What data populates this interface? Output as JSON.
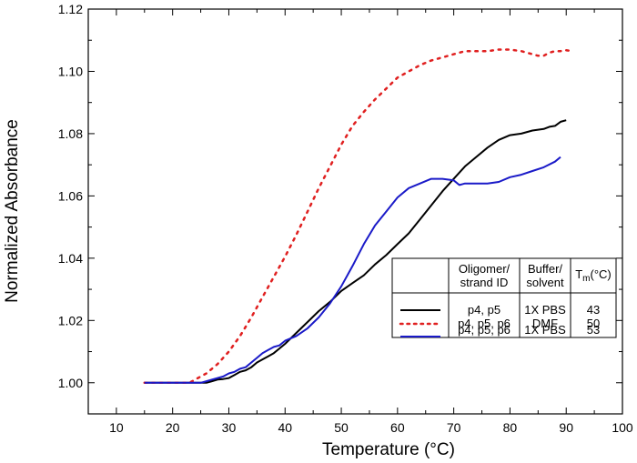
{
  "chart_data": {
    "type": "line",
    "xlabel": "Temperature (°C)",
    "ylabel": "Normalized Absorbance",
    "xlim": [
      5,
      100
    ],
    "ylim": [
      0.99,
      1.12
    ],
    "xticks": [
      "10",
      "20",
      "30",
      "40",
      "50",
      "60",
      "70",
      "80",
      "90",
      "100"
    ],
    "yticks": [
      "1.00",
      "1.02",
      "1.04",
      "1.06",
      "1.08",
      "1.10",
      "1.12"
    ],
    "grid": false,
    "legend_position": "bottom-right",
    "legend_headers": {
      "col1": [
        "Oligomer/",
        "strand ID"
      ],
      "col2": [
        "Buffer/",
        "solvent"
      ],
      "col3": "T",
      "col3_sub": "m",
      "col3_rest": "(°C)"
    },
    "series": [
      {
        "name": "p4, p5",
        "buffer": "1X PBS",
        "tm": "43",
        "color": "#000000",
        "dash": "solid",
        "x": [
          15,
          16,
          17,
          18,
          19,
          20,
          21,
          22,
          23,
          24,
          25,
          26,
          27,
          28,
          29,
          30,
          31,
          32,
          33,
          34,
          35,
          36,
          37,
          38,
          39,
          40,
          42,
          44,
          46,
          48,
          50,
          52,
          54,
          56,
          58,
          60,
          62,
          64,
          66,
          68,
          70,
          72,
          74,
          76,
          78,
          80,
          82,
          84,
          86,
          87,
          88,
          89,
          90
        ],
        "y": [
          1.0,
          1.0,
          1.0,
          1.0,
          1.0,
          1.0,
          1.0,
          1.0,
          1.0,
          1.0,
          1.0,
          1.0,
          1.0005,
          1.001,
          1.0012,
          1.0015,
          1.0025,
          1.0035,
          1.004,
          1.005,
          1.0065,
          1.0075,
          1.0085,
          1.0095,
          1.011,
          1.0125,
          1.016,
          1.0195,
          1.023,
          1.026,
          1.0295,
          1.032,
          1.0345,
          1.038,
          1.041,
          1.0445,
          1.048,
          1.0525,
          1.057,
          1.0615,
          1.0655,
          1.0695,
          1.0725,
          1.0755,
          1.078,
          1.0795,
          1.08,
          1.081,
          1.0815,
          1.0822,
          1.0825,
          1.0838,
          1.0843
        ]
      },
      {
        "name": "p4, p5, p6",
        "buffer": "DMF",
        "tm": "50",
        "color": "#e02020",
        "dash": "dotted",
        "x": [
          15,
          16,
          17,
          18,
          19,
          20,
          21,
          22,
          23,
          24,
          26,
          28,
          30,
          32,
          34,
          36,
          38,
          40,
          42,
          44,
          46,
          48,
          50,
          52,
          54,
          56,
          58,
          60,
          62,
          64,
          66,
          68,
          70,
          72,
          74,
          76,
          78,
          80,
          82,
          84,
          85,
          86,
          87,
          88,
          89,
          90,
          91
        ],
        "y": [
          1.0,
          1.0,
          1.0,
          1.0,
          1.0,
          1.0,
          1.0,
          1.0,
          1.0,
          1.001,
          1.003,
          1.006,
          1.01,
          1.015,
          1.021,
          1.0275,
          1.034,
          1.0405,
          1.0475,
          1.055,
          1.0625,
          1.0695,
          1.0765,
          1.0825,
          1.087,
          1.091,
          1.0945,
          1.098,
          1.1,
          1.102,
          1.1035,
          1.1045,
          1.1055,
          1.1065,
          1.1065,
          1.1065,
          1.107,
          1.107,
          1.1065,
          1.1055,
          1.105,
          1.105,
          1.106,
          1.1065,
          1.1065,
          1.1068,
          1.1065
        ]
      },
      {
        "name": "p4, p5, p6",
        "buffer": "1X PBS",
        "tm": "53",
        "color": "#1a1ac8",
        "dash": "solid",
        "x": [
          15,
          16,
          17,
          18,
          19,
          20,
          21,
          22,
          23,
          24,
          25,
          26,
          27,
          28,
          29,
          30,
          31,
          32,
          33,
          34,
          35,
          36,
          37,
          38,
          39,
          40,
          42,
          44,
          46,
          48,
          50,
          52,
          54,
          56,
          58,
          60,
          62,
          64,
          66,
          68,
          70,
          71,
          72,
          74,
          76,
          78,
          80,
          82,
          84,
          86,
          88,
          89
        ],
        "y": [
          1.0,
          1.0,
          1.0,
          1.0,
          1.0,
          1.0,
          1.0,
          1.0,
          1.0,
          1.0,
          1.0,
          1.0005,
          1.001,
          1.0015,
          1.002,
          1.003,
          1.0035,
          1.0045,
          1.005,
          1.0065,
          1.008,
          1.0095,
          1.0105,
          1.0115,
          1.012,
          1.0135,
          1.015,
          1.0175,
          1.021,
          1.0255,
          1.031,
          1.0375,
          1.0445,
          1.0505,
          1.055,
          1.0595,
          1.0625,
          1.064,
          1.0655,
          1.0655,
          1.065,
          1.0635,
          1.064,
          1.064,
          1.064,
          1.0645,
          1.066,
          1.0668,
          1.068,
          1.0692,
          1.071,
          1.0725
        ]
      }
    ]
  }
}
